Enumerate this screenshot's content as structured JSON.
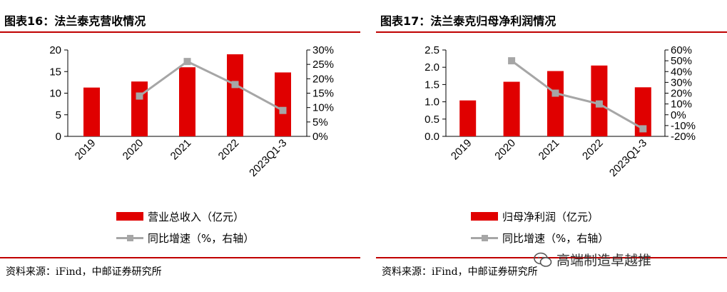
{
  "charts": [
    {
      "title": "图表16：法兰泰克营收情况",
      "source": "资料来源：iFind，中邮证券研究所",
      "legend": {
        "bar_label": "营业总收入（亿元）",
        "line_label": "同比增速（%，右轴）"
      },
      "left_ticks": [
        "20",
        "15",
        "10",
        "5",
        "0"
      ],
      "right_ticks": [
        "30%",
        "25%",
        "20%",
        "15%",
        "10%",
        "5%",
        "0%"
      ]
    },
    {
      "title": "图表17：法兰泰克归母净利润情况",
      "source": "资料来源：iFind，中邮证券研究所",
      "legend": {
        "bar_label": "归母净利润（亿元）",
        "line_label": "同比增速（%，右轴）"
      },
      "left_ticks": [
        "2.5",
        "2.0",
        "1.5",
        "1.0",
        "0.5",
        "0.0"
      ],
      "right_ticks": [
        "60%",
        "50%",
        "40%",
        "30%",
        "20%",
        "10%",
        "0%",
        "-10%",
        "-20%"
      ]
    }
  ],
  "watermark": {
    "text": "高端制造卓越推",
    "icon": "wechat-icon"
  },
  "colors": {
    "bar": "#e00000",
    "line": "#a6a6a6",
    "rule": "#c00000"
  },
  "chart_data": [
    {
      "type": "bar",
      "title": "图表16：法兰泰克营收情况",
      "categories": [
        "2019",
        "2020",
        "2021",
        "2022",
        "2023Q1-3"
      ],
      "series": [
        {
          "name": "营业总收入（亿元）",
          "type": "bar",
          "axis": "left",
          "values": [
            11.3,
            12.7,
            16.0,
            19.0,
            14.8
          ]
        },
        {
          "name": "同比增速（%，右轴）",
          "type": "line",
          "axis": "right",
          "values": [
            null,
            14,
            26,
            18,
            9
          ]
        }
      ],
      "ylim_left": [
        0,
        20
      ],
      "ylim_right": [
        0,
        30
      ],
      "legend_position": "bottom"
    },
    {
      "type": "bar",
      "title": "图表17：法兰泰克归母净利润情况",
      "categories": [
        "2019",
        "2020",
        "2021",
        "2022",
        "2023Q1-3"
      ],
      "series": [
        {
          "name": "归母净利润（亿元）",
          "type": "bar",
          "axis": "left",
          "values": [
            1.04,
            1.58,
            1.89,
            2.05,
            1.42
          ]
        },
        {
          "name": "同比增速（%，右轴）",
          "type": "line",
          "axis": "right",
          "values": [
            null,
            50,
            20,
            10,
            -13
          ]
        }
      ],
      "ylim_left": [
        0,
        2.5
      ],
      "ylim_right": [
        -20,
        60
      ],
      "legend_position": "bottom"
    }
  ]
}
